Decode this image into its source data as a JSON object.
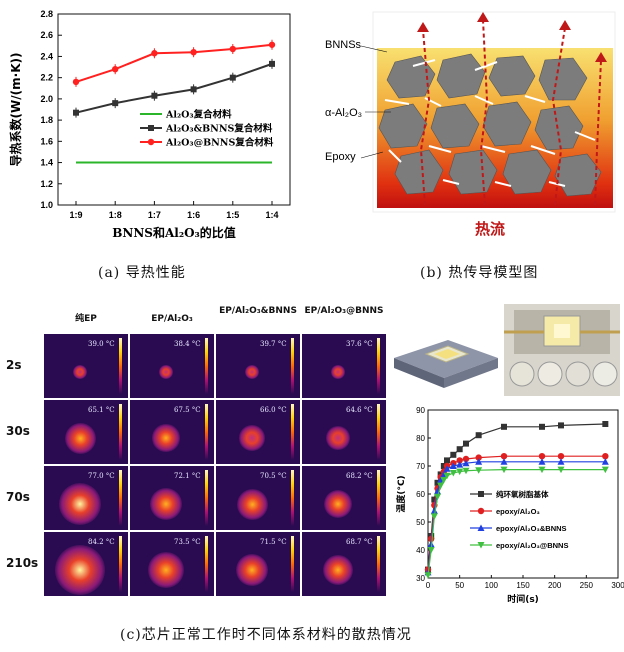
{
  "captions": {
    "a": "(a) 导热性能",
    "b": "(b) 热传导模型图",
    "c": "(c)芯片正常工作时不同体系材料的散热情况"
  },
  "chart_a": {
    "type": "line",
    "ylabel": "导热系数(W/(m·K))",
    "xlabel": "BNNS和Al₂O₃的比值",
    "categories": [
      "1:9",
      "1:8",
      "1:7",
      "1:6",
      "1:5",
      "1:4"
    ],
    "ylim": [
      1.0,
      2.8
    ],
    "yticks": [
      "1.0",
      "1.2",
      "1.4",
      "1.6",
      "1.8",
      "2.0",
      "2.2",
      "2.4",
      "2.6",
      "2.8"
    ],
    "series": [
      {
        "name": "Al₂O₃复合材料",
        "color": "#2ab52a",
        "values": [
          1.4,
          1.4,
          1.4,
          1.4,
          1.4,
          1.4
        ],
        "marker": "none"
      },
      {
        "name": "Al₂O₃&BNNS复合材料",
        "color": "#333333",
        "values": [
          1.87,
          1.96,
          2.03,
          2.09,
          2.2,
          2.33
        ],
        "marker": "square"
      },
      {
        "name": "Al₂O₃@BNNS复合材料",
        "color": "#ff2020",
        "values": [
          2.16,
          2.28,
          2.43,
          2.44,
          2.47,
          2.51
        ],
        "marker": "circle"
      }
    ]
  },
  "model_b": {
    "labels": [
      "BNNSs",
      "α-Al₂O₃",
      "Epoxy"
    ],
    "heat_label": "热流"
  },
  "ir_grid": {
    "columns": [
      "纯EP",
      "EP/Al₂O₃",
      "EP/Al₂O₃&BNNS",
      "EP/Al₂O₃@BNNS"
    ],
    "rows": [
      {
        "time": "2s",
        "temps": [
          "39.0 °C",
          "38.4 °C",
          "39.7 °C",
          "37.6 °C"
        ],
        "heat": [
          0.05,
          0.04,
          0.05,
          0.03
        ]
      },
      {
        "time": "30s",
        "temps": [
          "65.1 °C",
          "67.5 °C",
          "66.0 °C",
          "64.6 °C"
        ],
        "heat": [
          0.5,
          0.4,
          0.35,
          0.3
        ]
      },
      {
        "time": "70s",
        "temps": [
          "77.0 °C",
          "72.1 °C",
          "70.5 °C",
          "68.2 °C"
        ],
        "heat": [
          0.8,
          0.55,
          0.5,
          0.42
        ]
      },
      {
        "time": "210s",
        "temps": [
          "84.2 °C",
          "73.5 °C",
          "71.5 °C",
          "68.7 °C"
        ],
        "heat": [
          1.0,
          0.62,
          0.55,
          0.48
        ]
      }
    ]
  },
  "chart_c": {
    "type": "line",
    "ylabel": "温度(°C)",
    "xlabel": "时间(s)",
    "xlim": [
      0,
      300
    ],
    "ylim": [
      30,
      90
    ],
    "xticks": [
      "0",
      "50",
      "100",
      "150",
      "200",
      "250",
      "300"
    ],
    "yticks": [
      "30",
      "40",
      "50",
      "60",
      "70",
      "80",
      "90"
    ],
    "x": [
      0,
      5,
      10,
      15,
      20,
      25,
      30,
      40,
      50,
      60,
      80,
      120,
      180,
      210,
      280
    ],
    "series": [
      {
        "name": "纯环氧树脂基体",
        "color": "#333333",
        "marker": "square",
        "values": [
          33,
          45,
          58,
          64,
          67,
          70,
          72,
          74,
          76,
          78,
          81,
          84,
          84,
          84.5,
          85
        ]
      },
      {
        "name": "epoxy/Al₂O₃",
        "color": "#e02020",
        "marker": "circle",
        "values": [
          33,
          44,
          56,
          62,
          66,
          68,
          70,
          71,
          72,
          72.5,
          73,
          73.5,
          73.5,
          73.5,
          73.5
        ]
      },
      {
        "name": "epoxy/Al₂O₃&BNNS",
        "color": "#2040e0",
        "marker": "triangle",
        "values": [
          32,
          42,
          54,
          61,
          65,
          67,
          69,
          70,
          70.5,
          71,
          71.5,
          71.5,
          71.5,
          71.5,
          71.5
        ]
      },
      {
        "name": "epoxy/Al₂O₃@BNNS",
        "color": "#40c040",
        "marker": "tri-down",
        "values": [
          31,
          40,
          52,
          59,
          63,
          65,
          66.5,
          67.5,
          68,
          68.3,
          68.5,
          68.7,
          68.7,
          68.7,
          68.7
        ]
      }
    ]
  },
  "photos": {
    "left": "chip-module-render",
    "right": "chip-photo-with-samples"
  }
}
